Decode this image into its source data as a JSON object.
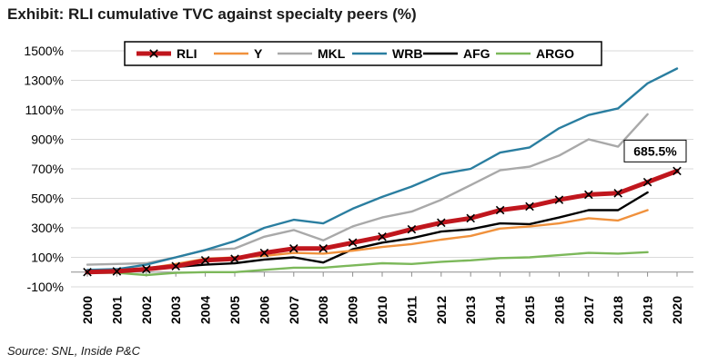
{
  "title": "Exhibit: RLI cumulative TVC against specialty peers (%)",
  "source": "Source: SNL, Inside P&C",
  "chart_data": {
    "type": "line",
    "title": "Exhibit: RLI cumulative TVC against specialty peers (%)",
    "xlabel": "",
    "ylabel": "",
    "x": [
      "2000",
      "2001",
      "2002",
      "2003",
      "2004",
      "2005",
      "2006",
      "2007",
      "2008",
      "2009",
      "2010",
      "2011",
      "2012",
      "2013",
      "2014",
      "2015",
      "2016",
      "2017",
      "2018",
      "2019",
      "2020"
    ],
    "ylim": [
      -100,
      1500
    ],
    "yticks": [
      -100,
      100,
      300,
      500,
      700,
      900,
      1100,
      1300,
      1500
    ],
    "ytick_labels": [
      "-100%",
      "100%",
      "300%",
      "500%",
      "700%",
      "900%",
      "1100%",
      "1300%",
      "1500%"
    ],
    "grid": "horizontal",
    "legend_position": "top",
    "series": [
      {
        "name": "RLI",
        "color": "#c0161d",
        "marker": "x",
        "values": [
          0,
          5,
          20,
          40,
          80,
          90,
          130,
          160,
          160,
          200,
          240,
          290,
          335,
          365,
          420,
          445,
          490,
          525,
          535,
          610,
          685.5
        ]
      },
      {
        "name": "Y",
        "color": "#f0913c",
        "values": [
          0,
          10,
          25,
          55,
          90,
          100,
          110,
          130,
          125,
          145,
          170,
          190,
          220,
          245,
          295,
          310,
          330,
          365,
          350,
          420,
          null
        ]
      },
      {
        "name": "MKL",
        "color": "#a9a9a9",
        "values": [
          50,
          55,
          60,
          100,
          150,
          160,
          240,
          285,
          215,
          310,
          370,
          410,
          490,
          590,
          690,
          715,
          790,
          900,
          850,
          1070,
          null
        ]
      },
      {
        "name": "WRB",
        "color": "#2a7ea0",
        "values": [
          15,
          20,
          50,
          100,
          150,
          210,
          300,
          355,
          330,
          430,
          510,
          580,
          665,
          700,
          810,
          845,
          975,
          1065,
          1110,
          1280,
          1380
        ]
      },
      {
        "name": "AFG",
        "color": "#000000",
        "values": [
          5,
          10,
          20,
          35,
          50,
          60,
          85,
          100,
          65,
          155,
          200,
          230,
          275,
          290,
          330,
          325,
          370,
          420,
          420,
          540,
          null
        ]
      },
      {
        "name": "ARGO",
        "color": "#7cb85a",
        "values": [
          -5,
          -5,
          -20,
          -5,
          0,
          0,
          15,
          30,
          30,
          45,
          60,
          55,
          70,
          80,
          95,
          100,
          115,
          130,
          125,
          135,
          null
        ]
      }
    ],
    "annotation": {
      "series": "RLI",
      "label": "685.5%"
    }
  }
}
